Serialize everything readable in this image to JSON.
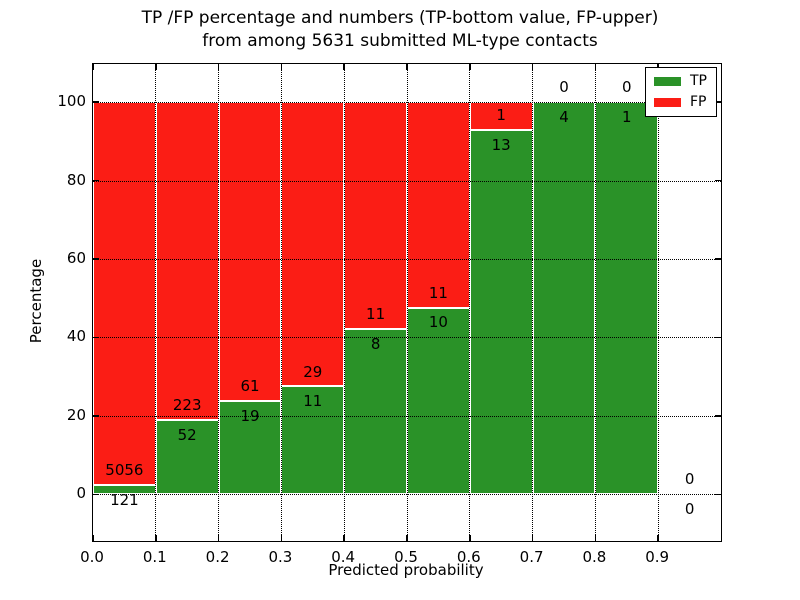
{
  "title": {
    "line1": "TP /FP percentage and numbers (TP-bottom value, FP-upper)",
    "line2": "from among 5631 submitted ML-type contacts"
  },
  "axes": {
    "ylabel": "Percentage",
    "xlabel": "Predicted probability",
    "ytick_labels": [
      "0",
      "20",
      "40",
      "60",
      "80",
      "100"
    ],
    "ytick_values": [
      0,
      20,
      40,
      60,
      80,
      100
    ],
    "xtick_labels": [
      "0.0",
      "0.1",
      "0.2",
      "0.3",
      "0.4",
      "0.5",
      "0.6",
      "0.7",
      "0.8",
      "0.9"
    ],
    "xtick_values": [
      0.0,
      0.1,
      0.2,
      0.3,
      0.4,
      0.5,
      0.6,
      0.7,
      0.8,
      0.9
    ]
  },
  "legend": {
    "items": [
      {
        "label": "TP",
        "color": "#2a9228"
      },
      {
        "label": "FP",
        "color": "#fb1d15"
      }
    ]
  },
  "colors": {
    "tp": "#2a9228",
    "fp": "#fb1d15",
    "bar_edge": "#ffffff",
    "grid": "#000000",
    "text": "#000000"
  },
  "chart_data": {
    "type": "bar",
    "stacked": true,
    "percent_normalized": true,
    "title": "TP /FP percentage and numbers (TP-bottom value, FP-upper) from among 5631 submitted ML-type contacts",
    "xlabel": "Predicted probability",
    "ylabel": "Percentage",
    "total_contacts": 5631,
    "bin_edges": [
      0.0,
      0.1,
      0.2,
      0.3,
      0.4,
      0.5,
      0.6,
      0.7,
      0.8,
      0.9,
      1.0
    ],
    "categories": [
      "0.0-0.1",
      "0.1-0.2",
      "0.2-0.3",
      "0.3-0.4",
      "0.4-0.5",
      "0.5-0.6",
      "0.6-0.7",
      "0.7-0.8",
      "0.8-0.9",
      "0.9-1.0"
    ],
    "series": [
      {
        "name": "TP",
        "color": "#2a9228",
        "counts": [
          121,
          52,
          19,
          11,
          8,
          10,
          13,
          4,
          1,
          0
        ]
      },
      {
        "name": "FP",
        "color": "#fb1d15",
        "counts": [
          5056,
          223,
          61,
          29,
          11,
          11,
          1,
          0,
          0,
          0
        ]
      }
    ],
    "tp_percent": [
      2.3,
      18.9,
      23.8,
      27.5,
      42.1,
      47.6,
      92.9,
      100.0,
      100.0,
      null
    ],
    "fp_percent": [
      97.7,
      81.1,
      76.2,
      72.5,
      57.9,
      52.4,
      7.1,
      0.0,
      0.0,
      null
    ],
    "ylim": [
      -11.9,
      109.7
    ],
    "xlim": [
      0.0,
      1.0
    ],
    "grid": true,
    "grid_style": "dotted",
    "legend_position": "upper right"
  }
}
